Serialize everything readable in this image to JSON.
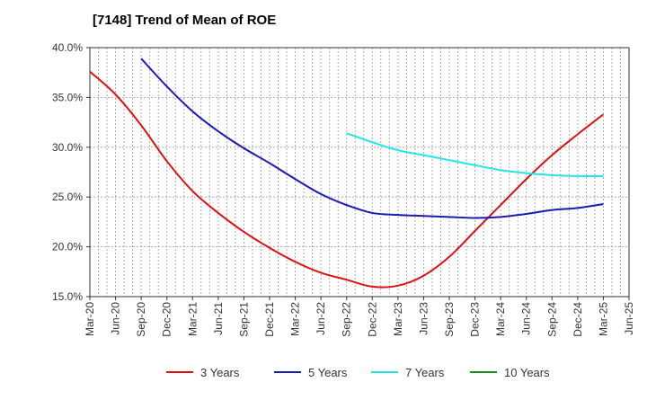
{
  "chart_data": {
    "type": "line",
    "title": "[7148]  Trend of Mean of ROE",
    "xlabel": "",
    "ylabel": "",
    "ylim": [
      15,
      40
    ],
    "grid": true,
    "legend_position": "bottom",
    "y_ticks": [
      "15.0%",
      "20.0%",
      "25.0%",
      "30.0%",
      "35.0%",
      "40.0%"
    ],
    "y_tick_values": [
      15,
      20,
      25,
      30,
      35,
      40
    ],
    "x_ticks": [
      "Mar-20",
      "Jun-20",
      "Sep-20",
      "Dec-20",
      "Mar-21",
      "Jun-21",
      "Sep-21",
      "Dec-21",
      "Mar-22",
      "Jun-22",
      "Sep-22",
      "Dec-22",
      "Mar-23",
      "Jun-23",
      "Sep-23",
      "Dec-23",
      "Mar-24",
      "Jun-24",
      "Sep-24",
      "Dec-24",
      "Mar-25",
      "Jun-25"
    ],
    "series": [
      {
        "name": "3 Years",
        "color": "#dd1111",
        "points": [
          [
            "Mar-20",
            37.6
          ],
          [
            "Jun-20",
            35.3
          ],
          [
            "Sep-20",
            32.2
          ],
          [
            "Dec-20",
            28.6
          ],
          [
            "Mar-21",
            25.6
          ],
          [
            "Jun-21",
            23.4
          ],
          [
            "Sep-21",
            21.5
          ],
          [
            "Dec-21",
            19.9
          ],
          [
            "Mar-22",
            18.5
          ],
          [
            "Jun-22",
            17.4
          ],
          [
            "Sep-22",
            16.7
          ],
          [
            "Dec-22",
            16.0
          ],
          [
            "Mar-23",
            16.1
          ],
          [
            "Jun-23",
            17.1
          ],
          [
            "Sep-23",
            19.0
          ],
          [
            "Dec-23",
            21.6
          ],
          [
            "Mar-24",
            24.2
          ],
          [
            "Jun-24",
            26.8
          ],
          [
            "Sep-24",
            29.2
          ],
          [
            "Dec-24",
            31.3
          ],
          [
            "Mar-25",
            33.3
          ]
        ]
      },
      {
        "name": "5 Years",
        "color": "#1a1ab5",
        "points": [
          [
            "Sep-20",
            38.9
          ],
          [
            "Dec-20",
            36.1
          ],
          [
            "Mar-21",
            33.6
          ],
          [
            "Jun-21",
            31.6
          ],
          [
            "Sep-21",
            29.9
          ],
          [
            "Dec-21",
            28.4
          ],
          [
            "Mar-22",
            26.8
          ],
          [
            "Jun-22",
            25.3
          ],
          [
            "Sep-22",
            24.2
          ],
          [
            "Dec-22",
            23.4
          ],
          [
            "Mar-23",
            23.2
          ],
          [
            "Jun-23",
            23.1
          ],
          [
            "Sep-23",
            23.0
          ],
          [
            "Dec-23",
            22.9
          ],
          [
            "Mar-24",
            23.0
          ],
          [
            "Jun-24",
            23.3
          ],
          [
            "Sep-24",
            23.7
          ],
          [
            "Dec-24",
            23.9
          ],
          [
            "Mar-25",
            24.3
          ]
        ]
      },
      {
        "name": "7 Years",
        "color": "#22e5e5",
        "points": [
          [
            "Sep-22",
            31.4
          ],
          [
            "Dec-22",
            30.5
          ],
          [
            "Mar-23",
            29.7
          ],
          [
            "Jun-23",
            29.2
          ],
          [
            "Sep-23",
            28.7
          ],
          [
            "Dec-23",
            28.2
          ],
          [
            "Mar-24",
            27.7
          ],
          [
            "Jun-24",
            27.4
          ],
          [
            "Sep-24",
            27.2
          ],
          [
            "Dec-24",
            27.1
          ],
          [
            "Mar-25",
            27.1
          ]
        ]
      },
      {
        "name": "10 Years",
        "color": "#1a8a1a",
        "points": []
      }
    ]
  }
}
